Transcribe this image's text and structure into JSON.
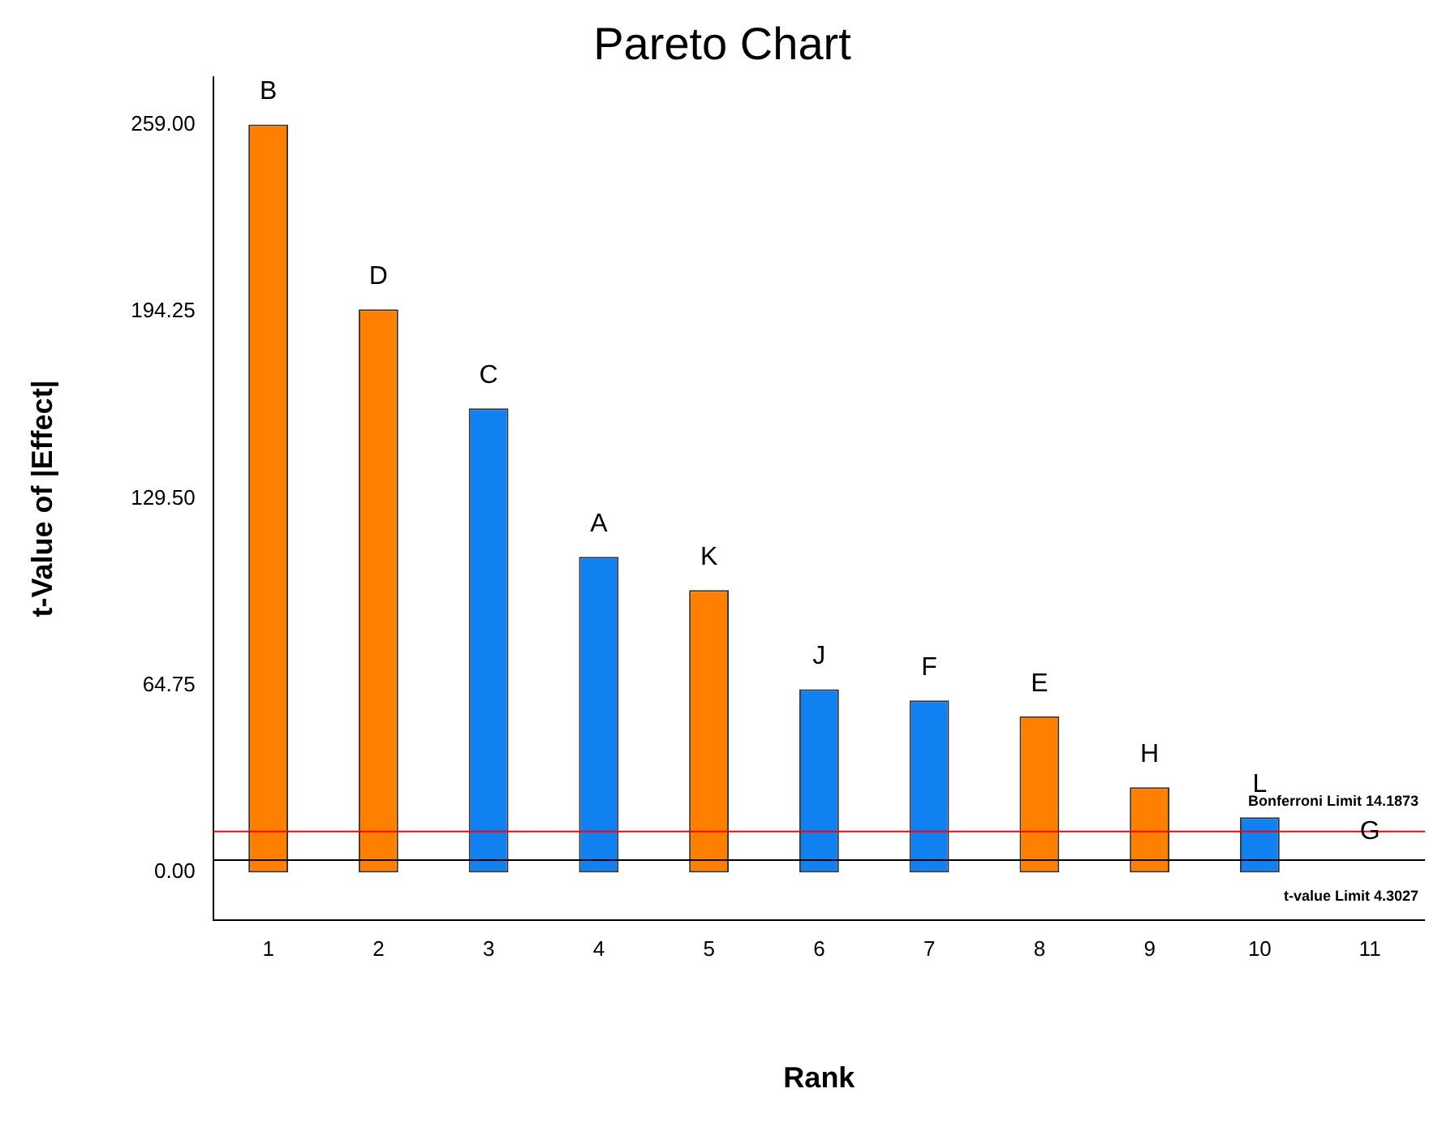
{
  "chart_data": {
    "type": "bar",
    "title": "Pareto Chart",
    "xlabel": "Rank",
    "ylabel": "t-Value of |Effect|",
    "categories": [
      "1",
      "2",
      "3",
      "4",
      "5",
      "6",
      "7",
      "8",
      "9",
      "10",
      "11"
    ],
    "values": [
      259,
      195,
      160.7,
      109.3,
      97.8,
      63.4,
      59.6,
      54.1,
      29.5,
      19.1,
      null
    ],
    "colors": [
      "#ff8000",
      "#ff8000",
      "#1180f0",
      "#1180f0",
      "#ff8000",
      "#1180f0",
      "#1180f0",
      "#ff8000",
      "#ff8000",
      "#1180f0",
      "#1180f0"
    ],
    "ylim": [
      -16.4,
      275.4
    ],
    "yticks": [
      {
        "value": 0,
        "label": "0.00"
      },
      {
        "value": 64.75,
        "label": "64.75"
      },
      {
        "value": 129.5,
        "label": "129.50"
      },
      {
        "value": 194.25,
        "label": "194.25"
      },
      {
        "value": 259,
        "label": "259.00"
      }
    ],
    "grid": false,
    "legend": false,
    "ref_lines": [
      {
        "axis": "y",
        "value": 14.1873,
        "label": "Bonferroni Limit 14.1873",
        "color": "#ff0000"
      },
      {
        "axis": "y",
        "value": 4.3027,
        "label": "t-value Limit 4.3027",
        "color": "#000000"
      }
    ],
    "annotations": [
      {
        "text": "B",
        "x": "1",
        "y": 259
      },
      {
        "text": "D",
        "x": "2",
        "y": 195
      },
      {
        "text": "C",
        "x": "3",
        "y": 160.7
      },
      {
        "text": "A",
        "x": "4",
        "y": 109.3
      },
      {
        "text": "K",
        "x": "5",
        "y": 97.8
      },
      {
        "text": "J",
        "x": "6",
        "y": 63.4
      },
      {
        "text": "F",
        "x": "7",
        "y": 59.6
      },
      {
        "text": "E",
        "x": "8",
        "y": 54.1
      },
      {
        "text": "H",
        "x": "9",
        "y": 29.5
      },
      {
        "text": "L",
        "x": "10",
        "y": 19.1
      },
      "G"
    ]
  }
}
